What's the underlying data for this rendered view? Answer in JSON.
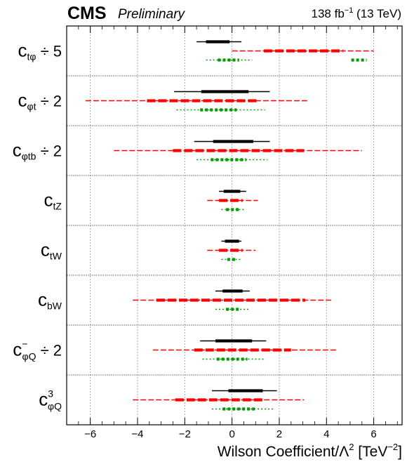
{
  "header": {
    "experiment": "CMS",
    "status": "Preliminary",
    "lumi": "138 fb",
    "lumi_exp": "−1",
    "energy": " (13 TeV)"
  },
  "chart_data": {
    "type": "interval",
    "xlabel": "Wilson Coefficient/Λ² [TeV⁻²]",
    "xlabel_main": "Wilson Coefficient/Λ",
    "xlabel_sq": "2",
    "xlabel_unit": " [TeV",
    "xlabel_unit_exp": "−2",
    "xlabel_close": "]",
    "xlim": [
      -7,
      7.2
    ],
    "xticks": [
      -6,
      -4,
      -2,
      0,
      2,
      4,
      6
    ],
    "xtick_labels": [
      "−6",
      "−4",
      "−2",
      "0",
      "2",
      "4",
      "6"
    ],
    "grid": true,
    "series_styles": [
      {
        "color": "#000000",
        "line": "solid"
      },
      {
        "color": "#ff0000",
        "line": "dashed"
      },
      {
        "color": "#009900",
        "line": "dotted"
      }
    ],
    "rows": [
      {
        "base": "c",
        "sub": "tφ",
        "sup": "",
        "suffix": " ÷ 5",
        "intervals": [
          {
            "s68": [
              [
                -1.1,
                -0.1
              ]
            ],
            "s95": [
              [
                -1.5,
                0.4
              ]
            ]
          },
          {
            "s68": [
              [
                1.35,
                4.7
              ]
            ],
            "s95": [
              [
                0.0,
                6.0
              ]
            ]
          },
          {
            "s68": [
              [
                -0.6,
                0.3
              ],
              [
                5.05,
                5.7
              ]
            ],
            "s95": [
              [
                -1.1,
                0.85
              ]
            ]
          }
        ]
      },
      {
        "base": "c",
        "sub": "φt",
        "sup": "",
        "suffix": " ÷ 2",
        "intervals": [
          {
            "s68": [
              [
                -1.3,
                0.7
              ]
            ],
            "s95": [
              [
                -2.45,
                1.6
              ]
            ]
          },
          {
            "s68": [
              [
                -3.6,
                1.1
              ]
            ],
            "s95": [
              [
                -6.2,
                3.2
              ]
            ]
          },
          {
            "s68": [
              [
                -1.35,
                0.2
              ]
            ],
            "s95": [
              [
                -2.35,
                1.4
              ]
            ]
          }
        ]
      },
      {
        "base": "c",
        "sub": "φtb",
        "sup": "",
        "suffix": " ÷ 2",
        "intervals": [
          {
            "s68": [
              [
                -0.8,
                0.9
              ]
            ],
            "s95": [
              [
                -1.6,
                1.6
              ]
            ]
          },
          {
            "s68": [
              [
                -2.5,
                3.05
              ]
            ],
            "s95": [
              [
                -5.0,
                5.5
              ]
            ]
          },
          {
            "s68": [
              [
                -0.9,
                0.6
              ]
            ],
            "s95": [
              [
                -1.5,
                1.5
              ]
            ]
          }
        ]
      },
      {
        "base": "c",
        "sub": "tZ",
        "sup": "",
        "suffix": "",
        "intervals": [
          {
            "s68": [
              [
                -0.35,
                0.35
              ]
            ],
            "s95": [
              [
                -0.55,
                0.6
              ]
            ]
          },
          {
            "s68": [
              [
                -0.55,
                0.45
              ]
            ],
            "s95": [
              [
                -1.05,
                1.1
              ]
            ]
          },
          {
            "s68": [
              [
                -0.25,
                0.3
              ]
            ],
            "s95": [
              [
                -0.45,
                0.5
              ]
            ]
          }
        ]
      },
      {
        "base": "c",
        "sub": "tW",
        "sup": "",
        "suffix": "",
        "intervals": [
          {
            "s68": [
              [
                -0.3,
                0.3
              ]
            ],
            "s95": [
              [
                -0.45,
                0.4
              ]
            ]
          },
          {
            "s68": [
              [
                -0.55,
                0.45
              ]
            ],
            "s95": [
              [
                -1.05,
                1.0
              ]
            ]
          },
          {
            "s68": [
              [
                -0.2,
                0.15
              ]
            ],
            "s95": [
              [
                -0.45,
                0.4
              ]
            ]
          }
        ]
      },
      {
        "base": "c",
        "sub": "bW",
        "sup": "",
        "suffix": "",
        "intervals": [
          {
            "s68": [
              [
                -0.4,
                0.45
              ]
            ],
            "s95": [
              [
                -0.7,
                0.75
              ]
            ]
          },
          {
            "s68": [
              [
                -3.2,
                3.1
              ]
            ],
            "s95": [
              [
                -4.2,
                4.2
              ]
            ]
          },
          {
            "s68": [
              [
                -0.25,
                0.35
              ]
            ],
            "s95": [
              [
                -0.7,
                0.75
              ]
            ]
          }
        ]
      },
      {
        "base": "c",
        "sub": "φQ",
        "sup": "−",
        "suffix": " ÷ 2",
        "intervals": [
          {
            "s68": [
              [
                -0.7,
                0.85
              ]
            ],
            "s95": [
              [
                -1.35,
                1.45
              ]
            ]
          },
          {
            "s68": [
              [
                -1.6,
                2.5
              ]
            ],
            "s95": [
              [
                -3.35,
                4.45
              ]
            ]
          },
          {
            "s68": [
              [
                -0.65,
                0.65
              ]
            ],
            "s95": [
              [
                -1.25,
                1.35
              ]
            ]
          }
        ]
      },
      {
        "base": "c",
        "sub": "φQ",
        "sup": "3",
        "suffix": "",
        "intervals": [
          {
            "s68": [
              [
                -0.15,
                1.3
              ]
            ],
            "s95": [
              [
                -0.85,
                1.9
              ]
            ]
          },
          {
            "s68": [
              [
                -2.4,
                1.35
              ]
            ],
            "s95": [
              [
                -4.2,
                3.05
              ]
            ]
          },
          {
            "s68": [
              [
                -0.4,
                1.0
              ]
            ],
            "s95": [
              [
                -0.85,
                1.75
              ]
            ]
          }
        ]
      }
    ]
  }
}
